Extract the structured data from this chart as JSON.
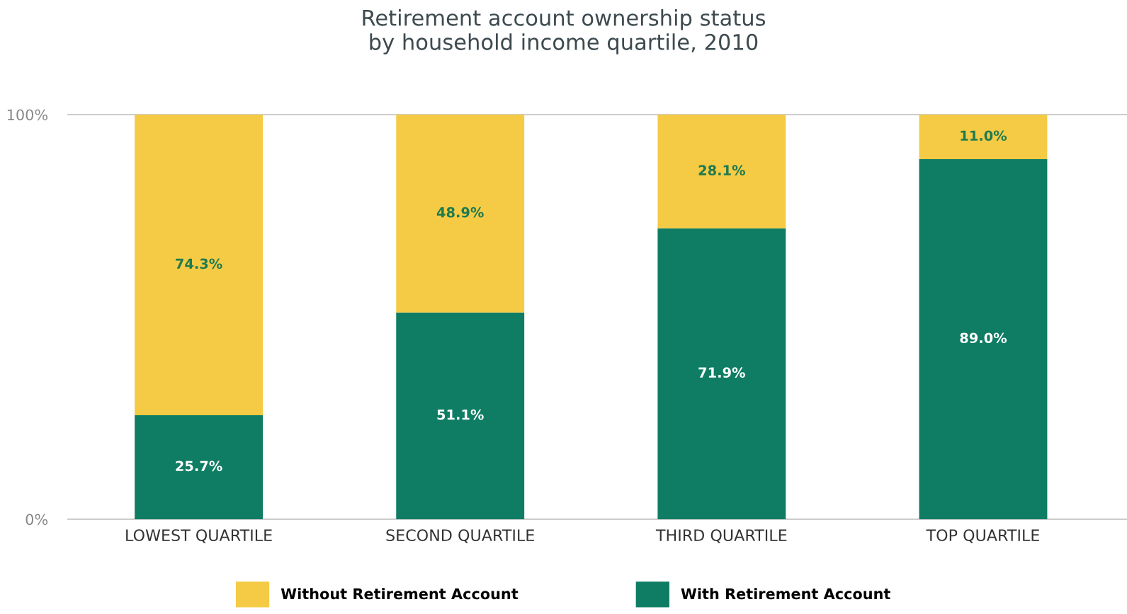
{
  "chart_data": {
    "type": "bar",
    "title": "Retirement account ownership status\nby household income quartile, 2010",
    "categories": [
      "LOWEST QUARTILE",
      "SECOND QUARTILE",
      "THIRD QUARTILE",
      "TOP QUARTILE"
    ],
    "stacked": true,
    "series": [
      {
        "name": "With Retirement Account",
        "color": "#0e7d63",
        "values": [
          25.7,
          51.1,
          71.9,
          89.0
        ],
        "value_labels": [
          "25.7%",
          "51.1%",
          "71.9%",
          "89.0%"
        ]
      },
      {
        "name": "Without Retirement Account",
        "color": "#f5cb45",
        "values": [
          74.3,
          48.9,
          28.1,
          11.0
        ],
        "value_labels": [
          "74.3%",
          "48.9%",
          "28.1%",
          "11.0%"
        ]
      }
    ],
    "ylim": [
      0,
      100
    ],
    "yticks": [
      {
        "value": 0,
        "label": "0%"
      },
      {
        "value": 100,
        "label": "100%"
      }
    ],
    "legend": "bottom"
  }
}
